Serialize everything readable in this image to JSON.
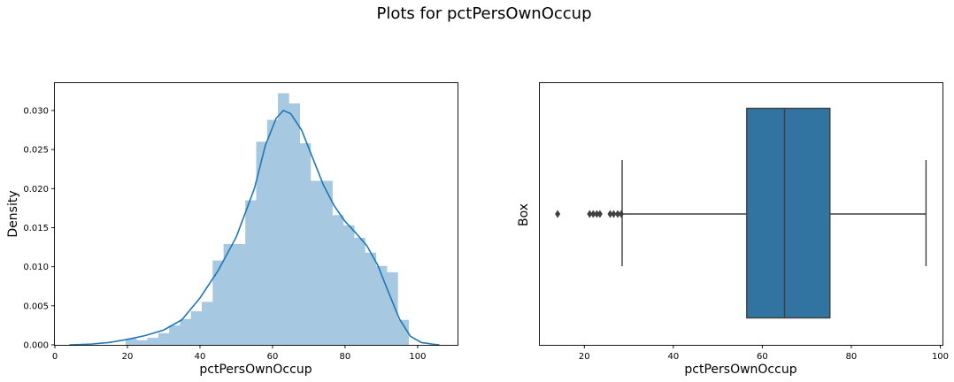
{
  "figure": {
    "title": "Plots for pctPersOwnOccup"
  },
  "colors": {
    "hist_fill": "#a6c8e0",
    "kde_line": "#1f77b4",
    "box_fill": "#3274a1",
    "box_line": "#3f3f3f"
  },
  "chart_data": [
    {
      "type": "histogram",
      "xlabel": "pctPersOwnOccup",
      "ylabel": "Density",
      "xlim": [
        0,
        111
      ],
      "ylim": [
        0,
        0.0335
      ],
      "xticks": [
        0,
        20,
        40,
        60,
        80,
        100
      ],
      "yticks": [
        0.0,
        0.005,
        0.01,
        0.015,
        0.02,
        0.025,
        0.03
      ],
      "bins": [
        {
          "x0": 19.5,
          "x1": 22.5,
          "density": 0.0008
        },
        {
          "x0": 22.5,
          "x1": 25.5,
          "density": 0.0006
        },
        {
          "x0": 25.5,
          "x1": 28.5,
          "density": 0.0009
        },
        {
          "x0": 28.5,
          "x1": 31.5,
          "density": 0.0015
        },
        {
          "x0": 31.5,
          "x1": 34.5,
          "density": 0.0025
        },
        {
          "x0": 34.5,
          "x1": 37.5,
          "density": 0.0033
        },
        {
          "x0": 37.5,
          "x1": 40.5,
          "density": 0.0043
        },
        {
          "x0": 40.5,
          "x1": 43.5,
          "density": 0.0055
        },
        {
          "x0": 43.5,
          "x1": 46.5,
          "density": 0.0108
        },
        {
          "x0": 46.5,
          "x1": 49.5,
          "density": 0.0129
        },
        {
          "x0": 49.5,
          "x1": 52.5,
          "density": 0.0129
        },
        {
          "x0": 52.5,
          "x1": 55.5,
          "density": 0.0185
        },
        {
          "x0": 55.5,
          "x1": 58.5,
          "density": 0.026
        },
        {
          "x0": 58.5,
          "x1": 61.5,
          "density": 0.0288
        },
        {
          "x0": 61.5,
          "x1": 64.5,
          "density": 0.0322
        },
        {
          "x0": 64.5,
          "x1": 67.5,
          "density": 0.0309
        },
        {
          "x0": 67.5,
          "x1": 70.5,
          "density": 0.0258
        },
        {
          "x0": 70.5,
          "x1": 73.5,
          "density": 0.021
        },
        {
          "x0": 73.5,
          "x1": 76.5,
          "density": 0.021
        },
        {
          "x0": 76.5,
          "x1": 79.5,
          "density": 0.0166
        },
        {
          "x0": 79.5,
          "x1": 82.5,
          "density": 0.0153
        },
        {
          "x0": 82.5,
          "x1": 85.5,
          "density": 0.0137
        },
        {
          "x0": 85.5,
          "x1": 88.5,
          "density": 0.0118
        },
        {
          "x0": 88.5,
          "x1": 91.5,
          "density": 0.0101
        },
        {
          "x0": 91.5,
          "x1": 94.5,
          "density": 0.0093
        },
        {
          "x0": 94.5,
          "x1": 97.5,
          "density": 0.0032
        }
      ],
      "kde": {
        "x": [
          4,
          10,
          15,
          20,
          25,
          30,
          35,
          40,
          45,
          50,
          55,
          58,
          61,
          63,
          65,
          68,
          71,
          74,
          77,
          80,
          83,
          86,
          89,
          92,
          95,
          98,
          101,
          104,
          106
        ],
        "y": [
          0.0,
          0.0001,
          0.0003,
          0.0007,
          0.0012,
          0.0019,
          0.0032,
          0.006,
          0.0095,
          0.0138,
          0.02,
          0.0255,
          0.029,
          0.03,
          0.0296,
          0.0275,
          0.024,
          0.0205,
          0.0178,
          0.0158,
          0.0143,
          0.0127,
          0.0102,
          0.0067,
          0.0033,
          0.0011,
          0.0003,
          0.0001,
          0.0
        ]
      }
    },
    {
      "type": "box",
      "xlabel": "pctPersOwnOccup",
      "ylabel": "Box",
      "xlim": [
        10,
        100.5
      ],
      "xticks": [
        20,
        40,
        60,
        80,
        100
      ],
      "whisker_low": 28.5,
      "q1": 56.5,
      "median": 65.0,
      "q3": 75.2,
      "whisker_high": 96.8,
      "outliers": [
        14.0,
        21.2,
        22.0,
        22.8,
        23.5,
        25.8,
        26.6,
        27.5,
        28.3
      ]
    }
  ]
}
